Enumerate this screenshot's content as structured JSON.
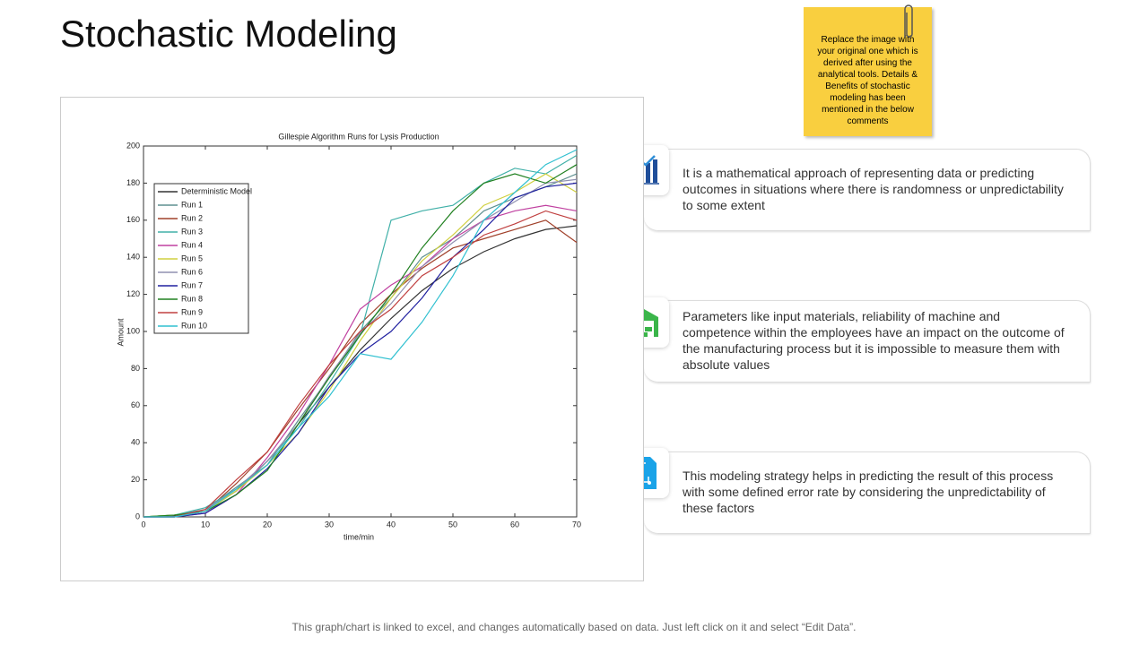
{
  "slide_title": "Stochastic Modeling",
  "sticky_note": "Replace the image with your original one which is derived after using the analytical tools. Details & Benefits of stochastic modeling has been mentioned in the below comments",
  "cards": [
    "It is a mathematical approach of representing data or predicting outcomes in situations where there is randomness or unpredictability to some extent",
    "Parameters like input materials, reliability of machine and competence within the employees have an impact on the outcome of the manufacturing process but it is impossible to measure them with absolute values",
    "This modeling strategy helps in predicting the result of this process with some defined error rate by considering the unpredictability of these factors"
  ],
  "footer": "This graph/chart is linked to excel, and changes automatically based on data. Just left click on it and select “Edit Data”.",
  "chart_data": {
    "type": "line",
    "title": "Gillespie Algorithm Runs for Lysis Production",
    "x_label": "time/min",
    "y_label": "Amount",
    "x": [
      0,
      5,
      10,
      15,
      20,
      25,
      30,
      35,
      40,
      45,
      50,
      55,
      60,
      65,
      70
    ],
    "xlim": [
      0,
      70
    ],
    "xticks": [
      0,
      10,
      20,
      30,
      40,
      50,
      60,
      70
    ],
    "ylim": [
      0,
      200
    ],
    "yticks": [
      0,
      20,
      40,
      60,
      80,
      100,
      120,
      140,
      160,
      180,
      200
    ],
    "legend": "upper-left",
    "series": [
      {
        "name": "Deterministic Model",
        "color": "#333333",
        "values": [
          0,
          0.5,
          3,
          14,
          30,
          50,
          70,
          90,
          107,
          122,
          134,
          143,
          150,
          155,
          157
        ]
      },
      {
        "name": "Run 1",
        "color": "#5f9090",
        "values": [
          0,
          1,
          4,
          16,
          28,
          52,
          75,
          100,
          118,
          140,
          150,
          165,
          172,
          178,
          185
        ]
      },
      {
        "name": "Run 2",
        "color": "#a0402a",
        "values": [
          0,
          0,
          3,
          18,
          35,
          58,
          80,
          104,
          120,
          134,
          145,
          150,
          155,
          160,
          148
        ]
      },
      {
        "name": "Run 3",
        "color": "#40b0a8",
        "values": [
          0,
          1,
          5,
          15,
          30,
          48,
          72,
          98,
          160,
          165,
          168,
          180,
          188,
          185,
          195
        ]
      },
      {
        "name": "Run 4",
        "color": "#c040a0",
        "values": [
          0,
          0,
          2,
          12,
          32,
          55,
          82,
          112,
          125,
          135,
          150,
          160,
          165,
          168,
          165
        ]
      },
      {
        "name": "Run 5",
        "color": "#d0d040",
        "values": [
          0,
          1,
          3,
          14,
          28,
          45,
          68,
          95,
          118,
          138,
          152,
          168,
          175,
          185,
          175
        ]
      },
      {
        "name": "Run 6",
        "color": "#9090b0",
        "values": [
          0,
          0,
          4,
          15,
          30,
          50,
          76,
          99,
          115,
          135,
          148,
          160,
          170,
          180,
          182
        ]
      },
      {
        "name": "Run 7",
        "color": "#2020a0",
        "values": [
          0,
          0,
          2,
          12,
          26,
          45,
          70,
          88,
          100,
          118,
          140,
          155,
          172,
          178,
          180
        ]
      },
      {
        "name": "Run 8",
        "color": "#208020",
        "values": [
          0,
          1,
          3,
          12,
          25,
          50,
          75,
          98,
          120,
          145,
          165,
          180,
          185,
          180,
          190
        ]
      },
      {
        "name": "Run 9",
        "color": "#c04040",
        "values": [
          0,
          0,
          4,
          20,
          35,
          60,
          82,
          100,
          112,
          130,
          140,
          152,
          158,
          165,
          160
        ]
      },
      {
        "name": "Run 10",
        "color": "#30c0d0",
        "values": [
          0,
          0,
          3,
          15,
          28,
          48,
          65,
          88,
          85,
          105,
          130,
          160,
          175,
          190,
          198
        ]
      }
    ]
  }
}
